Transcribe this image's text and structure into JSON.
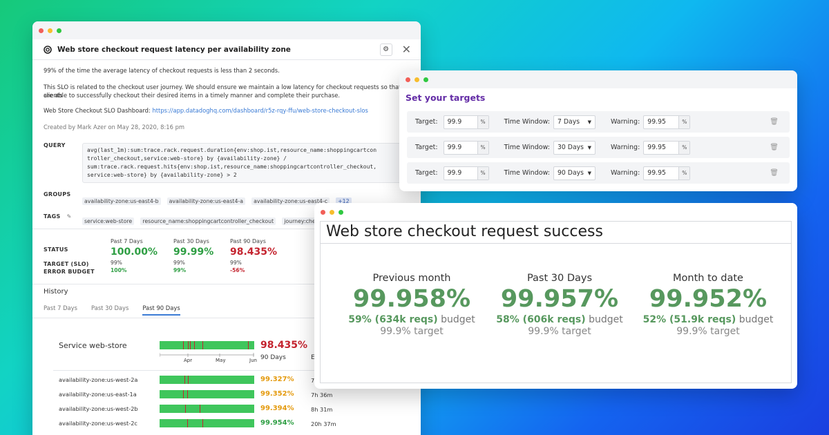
{
  "slo_window": {
    "title": "Web store checkout request latency per availability zone",
    "description": "99% of the time the average latency of checkout requests is less than 2 seconds.",
    "journey_line1": "This SLO is related to the checkout user journey. We should ensure we maintain a low latency for checkout requests so that clients",
    "journey_line2": "are able to successfully checkout their desired items in a timely manner and complete their purchase.",
    "dashboard_label": "Web Store Checkout SLO Dashboard:",
    "dashboard_link": "https://app.datadoghq.com/dashboard/r5z-rqy-ffu/web-store-checkout-slos",
    "created_by": "Created by Mark Azer on May 28, 2020, 8:16 pm",
    "query_label": "QUERY",
    "query": "avg(last_1m):sum:trace.rack.request.duration{env:shop.ist,resource_name:shoppingcartcon\ntroller_checkout,service:web-store} by {availability-zone} /\nsum:trace.rack.request.hits{env:shop.ist,resource_name:shoppingcartcontroller_checkout,\nservice:web-store} by {availability-zone} > 2",
    "groups_label": "GROUPS",
    "groups": [
      "availability-zone:us-east4-b",
      "availability-zone:us-east4-a",
      "availability-zone:us-east4-c"
    ],
    "groups_more": "+12",
    "tags_label": "TAGS",
    "tags": [
      "service:web-store",
      "resource_name:shoppingcartcontroller_checkout",
      "journey:checkout"
    ],
    "status": {
      "status_label": "STATUS",
      "target_label": "TARGET (SLO)",
      "budget_label": "ERROR BUDGET",
      "columns": [
        {
          "period": "Past 7 Days",
          "value": "100.00%",
          "target": "99%",
          "budget": "100%"
        },
        {
          "period": "Past 30 Days",
          "value": "99.99%",
          "target": "99%",
          "budget": "99%"
        },
        {
          "period": "Past 90 Days",
          "value": "98.435%",
          "target": "99%",
          "budget": "-56%"
        }
      ]
    },
    "history": {
      "title": "History",
      "tabs": [
        "Past 7 Days",
        "Past 30 Days",
        "Past 90 Days"
      ],
      "service_label": "Service web-store",
      "service_pct": "98.435%",
      "service_window": "90 Days",
      "service_extra": "E",
      "axis_ticks": [
        "Apr",
        "May",
        "Jun"
      ],
      "zones": [
        {
          "name": "availability-zone:us-west-2a",
          "pct": "99.327%",
          "extra": "7"
        },
        {
          "name": "availability-zone:us-east-1a",
          "pct": "99.352%",
          "extra": "7h 36m"
        },
        {
          "name": "availability-zone:us-west-2b",
          "pct": "99.394%",
          "extra": "8h 31m"
        },
        {
          "name": "availability-zone:us-west-2c",
          "pct": "99.954%",
          "extra": "20h 37m"
        }
      ]
    }
  },
  "targets_window": {
    "title": "Set your targets",
    "target_label": "Target:",
    "window_label": "Time Window:",
    "warning_label": "Warning:",
    "percent_unit": "%",
    "rows": [
      {
        "target": "99.9",
        "window": "7 Days",
        "warning": "99.95"
      },
      {
        "target": "99.9",
        "window": "30 Days",
        "warning": "99.95"
      },
      {
        "target": "99.9",
        "window": "90 Days",
        "warning": "99.95"
      }
    ]
  },
  "success_window": {
    "title": "Web store checkout request success",
    "stats": [
      {
        "heading": "Previous month",
        "value": "99.958%",
        "budget_value": "59% (634k reqs)",
        "budget_word": "budget",
        "target": "99.9% target"
      },
      {
        "heading": "Past 30 Days",
        "value": "99.957%",
        "budget_value": "58% (606k reqs)",
        "budget_word": "budget",
        "target": "99.9% target"
      },
      {
        "heading": "Month to date",
        "value": "99.952%",
        "budget_value": "52% (51.9k reqs)",
        "budget_word": "budget",
        "target": "99.9% target"
      }
    ]
  },
  "colors": {
    "good": "#2e9e43",
    "bad": "#c4242f",
    "warn": "#e49a0e",
    "purple": "#632ca6"
  }
}
